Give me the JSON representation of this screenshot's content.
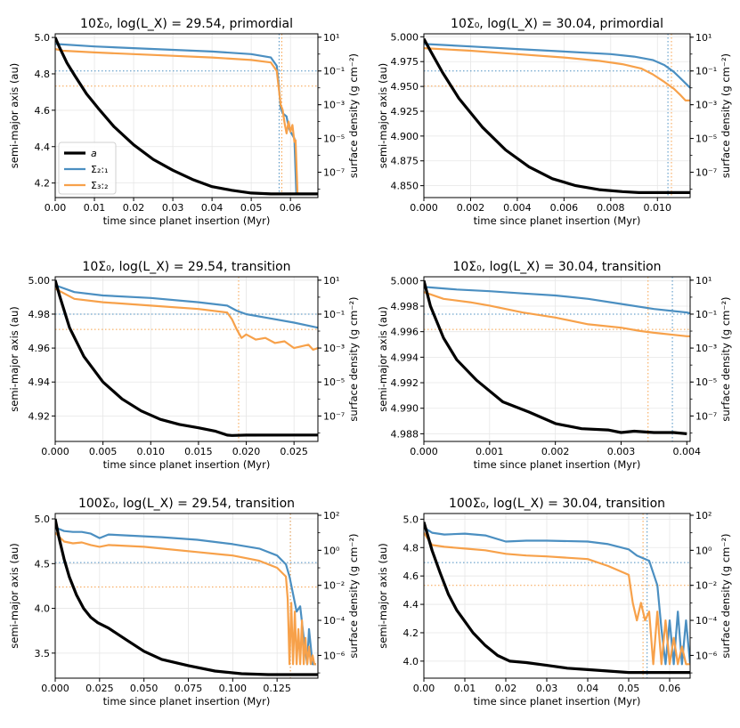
{
  "colors": {
    "a": "#000000",
    "s21": "#4b8fc1",
    "s32": "#f7a14a",
    "grid": "#e6e6e6"
  },
  "legend": {
    "a_label": "a",
    "s21_label": "Σ₂:₁",
    "s32_label": "Σ₃:₂"
  },
  "chart_data": [
    {
      "type": "line",
      "title": "10Σ₀, log(L_X) = 29.54, primordial",
      "xlabel": "time since planet insertion (Myr)",
      "ylabel": "semi-major axis (au)",
      "ylabel2": "surface density (g cm⁻²)",
      "xlim": [
        0,
        0.067
      ],
      "ylim": [
        4.12,
        5.02
      ],
      "y2log": [
        -8.5,
        1.2
      ],
      "xticks": [
        "0.00",
        "0.01",
        "0.02",
        "0.03",
        "0.04",
        "0.05",
        "0.06"
      ],
      "yticks": [
        "4.2",
        "4.4",
        "4.6",
        "4.8",
        "5.0"
      ],
      "y2ticks": [
        "10¹",
        "10⁻¹",
        "10⁻³",
        "10⁻⁵",
        "10⁻⁷"
      ],
      "vlines": {
        "s21": 0.0571,
        "s32": 0.0578
      },
      "hlines_log": {
        "s21": -1.0,
        "s32": -1.9
      },
      "a": {
        "x": [
          0,
          0.001,
          0.003,
          0.005,
          0.008,
          0.011,
          0.015,
          0.02,
          0.025,
          0.03,
          0.035,
          0.04,
          0.045,
          0.05,
          0.055,
          0.057,
          0.058,
          0.062,
          0.067
        ],
        "y": [
          5.0,
          4.95,
          4.86,
          4.79,
          4.69,
          4.61,
          4.51,
          4.41,
          4.33,
          4.27,
          4.22,
          4.18,
          4.16,
          4.145,
          4.14,
          4.14,
          4.14,
          4.14,
          4.14
        ]
      },
      "s21": {
        "x": [
          0,
          0.01,
          0.02,
          0.03,
          0.04,
          0.05,
          0.055,
          0.0565,
          0.057,
          0.0575,
          0.058,
          0.059,
          0.0595,
          0.06,
          0.0605,
          0.061,
          0.0615,
          0.062,
          0.067
        ],
        "log": [
          0.6,
          0.45,
          0.35,
          0.25,
          0.15,
          0.0,
          -0.2,
          -0.7,
          -1.8,
          -3.2,
          -3.5,
          -3.7,
          -4.3,
          -4.6,
          -4.8,
          -5.0,
          -8.3,
          -8.3,
          -8.3
        ]
      },
      "s32": {
        "x": [
          0,
          0.002,
          0.01,
          0.02,
          0.03,
          0.04,
          0.05,
          0.055,
          0.0565,
          0.057,
          0.0575,
          0.058,
          0.0585,
          0.059,
          0.0595,
          0.06,
          0.0605,
          0.061,
          0.0613,
          0.0618,
          0.067
        ],
        "log": [
          0.3,
          0.2,
          0.1,
          0.0,
          -0.1,
          -0.2,
          -0.35,
          -0.5,
          -1.0,
          -2.0,
          -3.0,
          -3.3,
          -4.1,
          -4.7,
          -4.0,
          -4.6,
          -4.2,
          -5.2,
          -5.1,
          -8.3,
          -8.3
        ]
      }
    },
    {
      "type": "line",
      "title": "10Σ₀, log(L_X) = 30.04, primordial",
      "xlabel": "time since planet insertion (Myr)",
      "ylabel": "semi-major axis (au)",
      "ylabel2": "surface density (g cm⁻²)",
      "xlim": [
        0,
        0.0114
      ],
      "ylim": [
        4.838,
        5.003
      ],
      "y2log": [
        -8.5,
        1.2
      ],
      "xticks": [
        "0.000",
        "0.002",
        "0.004",
        "0.006",
        "0.008",
        "0.010"
      ],
      "yticks": [
        "4.850",
        "4.875",
        "4.900",
        "4.925",
        "4.950",
        "4.975",
        "5.000"
      ],
      "y2ticks": [
        "10¹",
        "10⁻¹",
        "10⁻³",
        "10⁻⁵",
        "10⁻⁷"
      ],
      "vlines": {
        "s21": 0.01045,
        "s32": 0.0106
      },
      "hlines_log": {
        "s21": -1.0,
        "s32": -1.9
      },
      "a": {
        "x": [
          0,
          0.0003,
          0.0008,
          0.0015,
          0.0025,
          0.0035,
          0.0045,
          0.0055,
          0.0065,
          0.0075,
          0.0085,
          0.0092,
          0.01,
          0.0114
        ],
        "y": [
          4.998,
          4.985,
          4.964,
          4.938,
          4.909,
          4.886,
          4.869,
          4.857,
          4.85,
          4.846,
          4.844,
          4.843,
          4.843,
          4.843
        ]
      },
      "s21": {
        "x": [
          0,
          0.002,
          0.004,
          0.006,
          0.008,
          0.009,
          0.0098,
          0.0103,
          0.0107,
          0.011,
          0.0114
        ],
        "log": [
          0.6,
          0.45,
          0.3,
          0.15,
          0.0,
          -0.15,
          -0.35,
          -0.65,
          -1.05,
          -1.45,
          -2.0
        ]
      },
      "s32": {
        "x": [
          0,
          0.002,
          0.004,
          0.006,
          0.0075,
          0.0085,
          0.0093,
          0.0098,
          0.0103,
          0.0107,
          0.011,
          0.0112,
          0.0114
        ],
        "log": [
          0.35,
          0.2,
          0.0,
          -0.2,
          -0.4,
          -0.6,
          -0.85,
          -1.2,
          -1.65,
          -2.05,
          -2.45,
          -2.75,
          -2.75
        ]
      }
    },
    {
      "type": "line",
      "title": "10Σ₀, log(L_X) = 29.54, transition",
      "xlabel": "time since planet insertion (Myr)",
      "ylabel": "semi-major axis (au)",
      "ylabel2": "surface density (g cm⁻²)",
      "xlim": [
        0,
        0.0275
      ],
      "ylim": [
        4.905,
        5.002
      ],
      "y2log": [
        -8.5,
        1.2
      ],
      "xticks": [
        "0.000",
        "0.005",
        "0.010",
        "0.015",
        "0.020",
        "0.025"
      ],
      "yticks": [
        "4.92",
        "4.94",
        "4.96",
        "4.98",
        "5.00"
      ],
      "y2ticks": [
        "10¹",
        "10⁻¹",
        "10⁻³",
        "10⁻⁵",
        "10⁻⁷"
      ],
      "vlines": {
        "s32": 0.0192
      },
      "hlines_log": {
        "s21": -1.0,
        "s32": -1.9
      },
      "a": {
        "x": [
          0,
          0.0005,
          0.0015,
          0.003,
          0.005,
          0.007,
          0.009,
          0.011,
          0.013,
          0.015,
          0.0168,
          0.018,
          0.0185,
          0.02,
          0.0275
        ],
        "y": [
          5.0,
          4.99,
          4.972,
          4.955,
          4.94,
          4.93,
          4.923,
          4.918,
          4.915,
          4.913,
          4.911,
          4.9087,
          4.9085,
          4.9087,
          4.9088
        ]
      },
      "s21": {
        "x": [
          0,
          0.002,
          0.005,
          0.01,
          0.015,
          0.018,
          0.019,
          0.02,
          0.022,
          0.025,
          0.0275
        ],
        "log": [
          0.7,
          0.3,
          0.1,
          -0.05,
          -0.3,
          -0.5,
          -0.8,
          -1.0,
          -1.2,
          -1.5,
          -1.8
        ]
      },
      "s32": {
        "x": [
          0,
          0.002,
          0.005,
          0.01,
          0.015,
          0.018,
          0.0185,
          0.019,
          0.0195,
          0.02,
          0.021,
          0.022,
          0.023,
          0.024,
          0.025,
          0.0265,
          0.027,
          0.0275
        ],
        "log": [
          0.5,
          -0.1,
          -0.3,
          -0.5,
          -0.7,
          -0.9,
          -1.3,
          -1.9,
          -2.4,
          -2.2,
          -2.5,
          -2.4,
          -2.7,
          -2.6,
          -3.0,
          -2.8,
          -3.1,
          -3.0
        ]
      }
    },
    {
      "type": "line",
      "title": "10Σ₀, log(L_X) = 30.04, transition",
      "xlabel": "time since planet insertion (Myr)",
      "ylabel": "semi-major axis (au)",
      "ylabel2": "surface density (g cm⁻²)",
      "xlim": [
        0,
        0.00405
      ],
      "ylim": [
        4.9874,
        5.0003
      ],
      "y2log": [
        -8.5,
        1.2
      ],
      "xticks": [
        "0.000",
        "0.001",
        "0.002",
        "0.003",
        "0.004"
      ],
      "yticks": [
        "4.988",
        "4.990",
        "4.992",
        "4.994",
        "4.996",
        "4.998",
        "5.000"
      ],
      "y2ticks": [
        "10¹",
        "10⁻¹",
        "10⁻³",
        "10⁻⁵",
        "10⁻⁷"
      ],
      "vlines": {
        "s21": 0.00378,
        "s32": 0.00341
      },
      "hlines_log": {
        "s21": -1.0,
        "s32": -1.9
      },
      "a": {
        "x": [
          0,
          0.0001,
          0.0003,
          0.0005,
          0.0008,
          0.0012,
          0.0016,
          0.002,
          0.0024,
          0.0028,
          0.003,
          0.0032,
          0.0035,
          0.0038,
          0.004
        ],
        "y": [
          5.0,
          4.998,
          4.9955,
          4.9938,
          4.9922,
          4.9905,
          4.9897,
          4.9888,
          4.9884,
          4.9883,
          4.9881,
          4.9882,
          4.9881,
          4.9881,
          4.988
        ]
      },
      "s21": {
        "x": [
          0,
          0.0005,
          0.001,
          0.0015,
          0.002,
          0.0025,
          0.003,
          0.0035,
          0.004,
          0.00405
        ],
        "log": [
          0.6,
          0.45,
          0.35,
          0.22,
          0.1,
          -0.1,
          -0.4,
          -0.7,
          -0.9,
          -0.95
        ]
      },
      "s32": {
        "x": [
          0,
          0.0003,
          0.0007,
          0.001,
          0.0015,
          0.002,
          0.0025,
          0.003,
          0.0033,
          0.0035,
          0.004,
          0.00405
        ],
        "log": [
          0.3,
          -0.1,
          -0.3,
          -0.5,
          -0.9,
          -1.2,
          -1.6,
          -1.8,
          -2.0,
          -2.1,
          -2.3,
          -2.3
        ]
      }
    },
    {
      "type": "line",
      "title": "100Σ₀, log(L_X) = 29.54, transition",
      "xlabel": "time since planet insertion (Myr)",
      "ylabel": "semi-major axis (au)",
      "ylabel2": "surface density (g cm⁻²)",
      "xlim": [
        0,
        0.148
      ],
      "ylim": [
        3.22,
        5.06
      ],
      "y2log": [
        -7.3,
        2.1
      ],
      "xticks": [
        "0.000",
        "0.025",
        "0.050",
        "0.075",
        "0.100",
        "0.125"
      ],
      "yticks": [
        "3.5",
        "4.0",
        "4.5",
        "5.0"
      ],
      "y2ticks": [
        "10²",
        "10⁰",
        "10⁻²",
        "10⁻⁴",
        "10⁻⁶"
      ],
      "vlines": {
        "s21": 0.1325,
        "s32": 0.1325
      },
      "hlines_log": {
        "s21": -0.7,
        "s32": -2.1
      },
      "a": {
        "x": [
          0,
          0.002,
          0.005,
          0.008,
          0.012,
          0.016,
          0.02,
          0.024,
          0.03,
          0.04,
          0.05,
          0.06,
          0.075,
          0.09,
          0.105,
          0.12,
          0.133,
          0.148
        ],
        "y": [
          5.0,
          4.8,
          4.55,
          4.35,
          4.15,
          4.0,
          3.9,
          3.84,
          3.78,
          3.65,
          3.52,
          3.43,
          3.36,
          3.3,
          3.27,
          3.26,
          3.26,
          3.26
        ]
      },
      "s21": {
        "x": [
          0,
          0.005,
          0.01,
          0.015,
          0.02,
          0.025,
          0.03,
          0.04,
          0.05,
          0.06,
          0.08,
          0.1,
          0.115,
          0.125,
          0.13,
          0.132,
          0.134,
          0.136,
          0.138,
          0.14,
          0.142,
          0.143,
          0.144,
          0.145,
          0.146,
          0.147
        ],
        "log": [
          1.3,
          1.1,
          1.05,
          1.05,
          0.95,
          0.7,
          0.9,
          0.85,
          0.8,
          0.75,
          0.6,
          0.35,
          0.1,
          -0.3,
          -0.8,
          -1.5,
          -2.5,
          -3.5,
          -3.2,
          -5.0,
          -6.5,
          -4.5,
          -5.5,
          -6.5,
          -6.5,
          -6.5
        ]
      },
      "s32": {
        "x": [
          0,
          0.005,
          0.01,
          0.015,
          0.02,
          0.025,
          0.03,
          0.04,
          0.05,
          0.06,
          0.08,
          0.1,
          0.115,
          0.125,
          0.13,
          0.131,
          0.132,
          0.133,
          0.134,
          0.135,
          0.136,
          0.137,
          0.138,
          0.139,
          0.14,
          0.141,
          0.142,
          0.143,
          0.144,
          0.145,
          0.146,
          0.147
        ],
        "log": [
          1.0,
          0.5,
          0.4,
          0.45,
          0.3,
          0.2,
          0.3,
          0.25,
          0.2,
          0.1,
          -0.1,
          -0.3,
          -0.6,
          -1.0,
          -1.5,
          -2.8,
          -6.5,
          -3.0,
          -6.5,
          -3.5,
          -6.5,
          -4.5,
          -6.5,
          -4.0,
          -6.5,
          -5.0,
          -6.5,
          -5.5,
          -6.5,
          -6.0,
          -6.5,
          -6.5
        ]
      }
    },
    {
      "type": "line",
      "title": "100Σ₀, log(L_X) = 30.04, transition",
      "xlabel": "time since planet insertion (Myr)",
      "ylabel": "semi-major axis (au)",
      "ylabel2": "surface density (g cm⁻²)",
      "xlim": [
        0,
        0.065
      ],
      "ylim": [
        3.88,
        5.04
      ],
      "y2log": [
        -7.3,
        2.1
      ],
      "xticks": [
        "0.00",
        "0.01",
        "0.02",
        "0.03",
        "0.04",
        "0.05",
        "0.06"
      ],
      "yticks": [
        "4.0",
        "4.2",
        "4.4",
        "4.6",
        "4.8",
        "5.0"
      ],
      "y2ticks": [
        "10²",
        "10⁰",
        "10⁻²",
        "10⁻⁴",
        "10⁻⁶"
      ],
      "vlines": {
        "s21": 0.0545,
        "s32": 0.0535
      },
      "hlines_log": {
        "s21": -0.7,
        "s32": -2.0
      },
      "a": {
        "x": [
          0,
          0.001,
          0.002,
          0.004,
          0.006,
          0.008,
          0.01,
          0.012,
          0.015,
          0.018,
          0.021,
          0.025,
          0.03,
          0.035,
          0.04,
          0.045,
          0.05,
          0.055,
          0.065
        ],
        "y": [
          4.98,
          4.88,
          4.78,
          4.62,
          4.47,
          4.36,
          4.28,
          4.2,
          4.11,
          4.04,
          4.0,
          3.99,
          3.97,
          3.95,
          3.94,
          3.93,
          3.92,
          3.92,
          3.92
        ]
      },
      "s21": {
        "x": [
          0,
          0.002,
          0.005,
          0.01,
          0.015,
          0.02,
          0.025,
          0.03,
          0.04,
          0.045,
          0.05,
          0.052,
          0.055,
          0.057,
          0.058,
          0.059,
          0.06,
          0.061,
          0.062,
          0.063,
          0.064,
          0.065
        ],
        "log": [
          1.3,
          1.0,
          0.9,
          0.95,
          0.85,
          0.5,
          0.55,
          0.55,
          0.5,
          0.35,
          0.05,
          -0.3,
          -0.6,
          -2.0,
          -4.5,
          -6.5,
          -4.0,
          -6.5,
          -3.5,
          -6.5,
          -4.0,
          -6.5
        ]
      },
      "s32": {
        "x": [
          0,
          0.002,
          0.005,
          0.01,
          0.015,
          0.02,
          0.025,
          0.03,
          0.04,
          0.045,
          0.05,
          0.051,
          0.052,
          0.053,
          0.054,
          0.055,
          0.056,
          0.057,
          0.058,
          0.059,
          0.06,
          0.061,
          0.062,
          0.063,
          0.064,
          0.065
        ],
        "log": [
          1.0,
          0.3,
          0.2,
          0.1,
          0.0,
          -0.2,
          -0.3,
          -0.35,
          -0.5,
          -0.9,
          -1.4,
          -3.0,
          -4.0,
          -3.0,
          -4.0,
          -3.5,
          -6.5,
          -3.5,
          -6.5,
          -4.0,
          -6.5,
          -5.0,
          -6.5,
          -5.5,
          -6.5,
          -6.5
        ]
      }
    }
  ]
}
